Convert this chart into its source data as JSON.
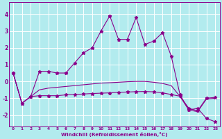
{
  "xlabel": "Windchill (Refroidissement éolien,°C)",
  "background_color": "#b2ebee",
  "line_color": "#8b008b",
  "grid_color": "#ffffff",
  "x_hours": [
    0,
    1,
    2,
    3,
    4,
    5,
    6,
    7,
    8,
    9,
    10,
    11,
    12,
    13,
    14,
    15,
    16,
    17,
    18,
    19,
    20,
    21,
    22,
    23
  ],
  "y_temp": [
    0.5,
    -1.3,
    -0.9,
    0.6,
    0.6,
    0.5,
    0.5,
    1.1,
    1.7,
    2.0,
    3.0,
    3.9,
    2.5,
    2.5,
    3.8,
    2.2,
    2.4,
    2.9,
    1.5,
    -0.8,
    -1.7,
    -1.6,
    -2.2,
    -2.4
  ],
  "y_windchill": [
    0.5,
    -1.3,
    -0.9,
    -0.85,
    -0.85,
    -0.85,
    -0.8,
    -0.78,
    -0.75,
    -0.72,
    -0.7,
    -0.68,
    -0.65,
    -0.63,
    -0.61,
    -0.6,
    -0.62,
    -0.68,
    -0.78,
    -0.88,
    -1.6,
    -1.75,
    -1.0,
    -0.95
  ],
  "y_line3": [
    0.5,
    -1.3,
    -0.9,
    -0.5,
    -0.4,
    -0.35,
    -0.3,
    -0.25,
    -0.2,
    -0.15,
    -0.1,
    -0.08,
    -0.05,
    -0.02,
    0.0,
    0.0,
    -0.05,
    -0.12,
    -0.25,
    -0.9,
    -1.7,
    -1.8,
    -1.05,
    -1.0
  ],
  "ylim": [
    -2.7,
    4.7
  ],
  "xlim": [
    -0.5,
    23.5
  ],
  "yticks": [
    -2,
    -1,
    0,
    1,
    2,
    3,
    4
  ],
  "xticks": [
    0,
    1,
    2,
    3,
    4,
    5,
    6,
    7,
    8,
    9,
    10,
    11,
    12,
    13,
    14,
    15,
    16,
    17,
    18,
    19,
    20,
    21,
    22,
    23
  ]
}
